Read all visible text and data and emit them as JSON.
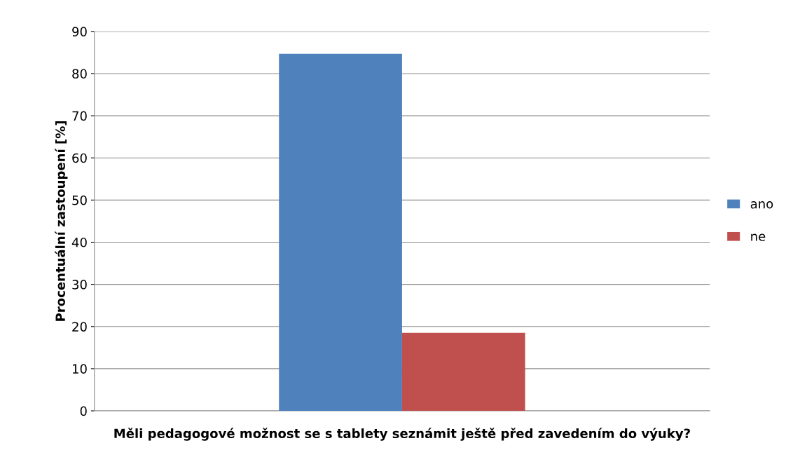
{
  "chart_data": {
    "type": "bar",
    "xlabel": "Měli pedagogové možnost se s tablety seznámit ještě před zavedením do výuky?",
    "ylabel": "Procentuální zastoupení [%]",
    "categories": [
      null
    ],
    "series": [
      {
        "name": "ano",
        "color": "#4f81bd",
        "values": [
          84.7
        ]
      },
      {
        "name": "ne",
        "color": "#c0504d",
        "values": [
          18.5
        ]
      }
    ],
    "ylim": [
      0,
      90
    ],
    "yticks": [
      0,
      10,
      20,
      30,
      40,
      50,
      60,
      70,
      80,
      90
    ],
    "grid": "y",
    "legend": "right"
  }
}
